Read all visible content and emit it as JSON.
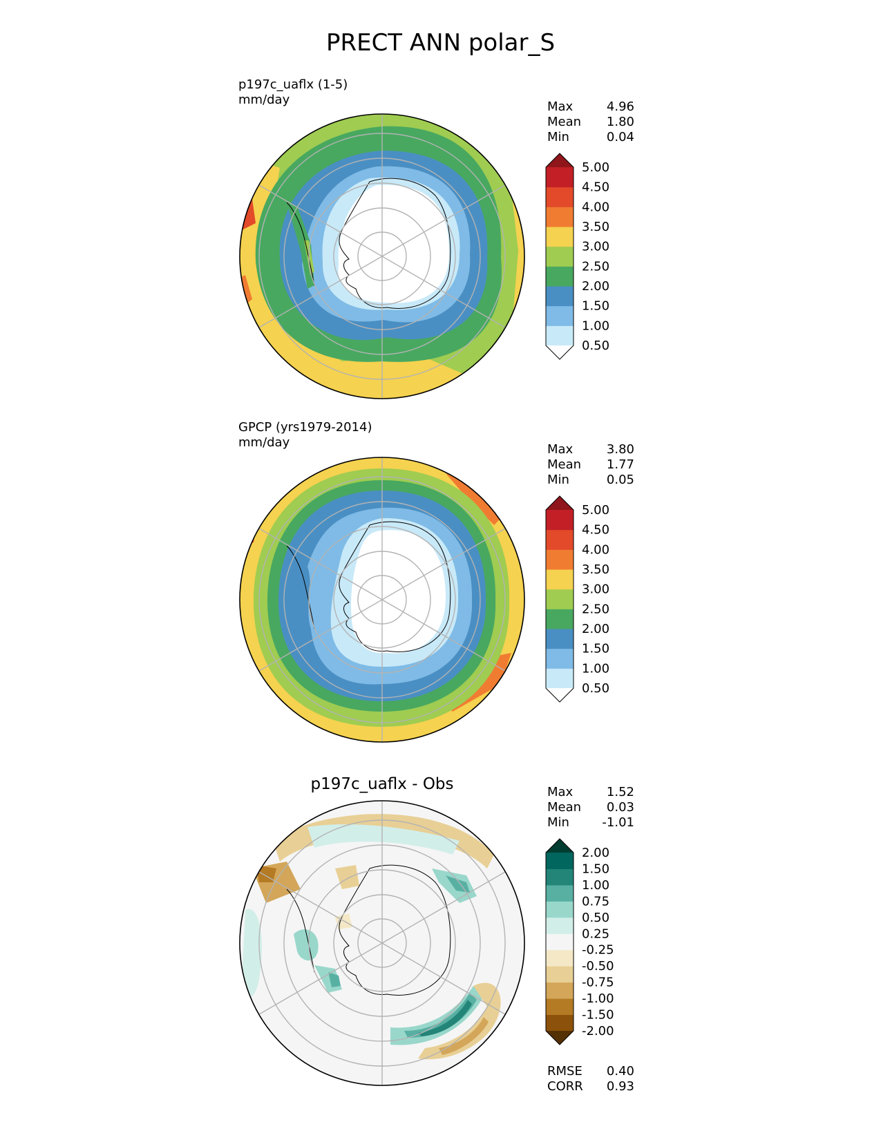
{
  "title": "PRECT ANN polar_S",
  "panels": [
    {
      "id": "test",
      "title_lines": [
        "p197c_uaflx (1-5)",
        "mm/day"
      ],
      "stats": [
        {
          "label": "Max",
          "value": "4.96"
        },
        {
          "label": "Mean",
          "value": "1.80"
        },
        {
          "label": "Min",
          "value": "0.04"
        }
      ],
      "colorbar": {
        "ticks": [
          "0.50",
          "1.00",
          "1.50",
          "2.00",
          "2.50",
          "3.00",
          "3.50",
          "4.00",
          "4.50",
          "5.00"
        ],
        "colors": [
          "#ffffff",
          "#c8e9f8",
          "#7fbbe6",
          "#4a8fc3",
          "#48a860",
          "#9fcc51",
          "#f5d24f",
          "#f07c32",
          "#e34a2a",
          "#c21f26",
          "#8f161b"
        ]
      }
    },
    {
      "id": "ref",
      "title_lines": [
        "GPCP (yrs1979-2014)",
        "mm/day"
      ],
      "stats": [
        {
          "label": "Max",
          "value": "3.80"
        },
        {
          "label": "Mean",
          "value": "1.77"
        },
        {
          "label": "Min",
          "value": "0.05"
        }
      ],
      "colorbar": {
        "ticks": [
          "0.50",
          "1.00",
          "1.50",
          "2.00",
          "2.50",
          "3.00",
          "3.50",
          "4.00",
          "4.50",
          "5.00"
        ],
        "colors": [
          "#ffffff",
          "#c8e9f8",
          "#7fbbe6",
          "#4a8fc3",
          "#48a860",
          "#9fcc51",
          "#f5d24f",
          "#f07c32",
          "#e34a2a",
          "#c21f26",
          "#8f161b"
        ]
      }
    },
    {
      "id": "diff",
      "title": "p197c_uaflx - Obs",
      "stats": [
        {
          "label": "Max",
          "value": "1.52"
        },
        {
          "label": "Mean",
          "value": "0.03"
        },
        {
          "label": "Min",
          "value": "-1.01"
        }
      ],
      "extra_stats": [
        {
          "label": "RMSE",
          "value": "0.40"
        },
        {
          "label": "CORR",
          "value": "0.93"
        }
      ],
      "colorbar": {
        "ticks": [
          "-2.00",
          "-1.50",
          "-1.00",
          "-0.75",
          "-0.50",
          "-0.25",
          "0.25",
          "0.50",
          "0.75",
          "1.00",
          "1.50",
          "2.00"
        ],
        "colors": [
          "#543005",
          "#8c510a",
          "#b47a24",
          "#d3a659",
          "#e8cf95",
          "#f4e8c6",
          "#f5f5f5",
          "#d2eee9",
          "#99d7cb",
          "#58b0a3",
          "#238478",
          "#01665e",
          "#003c30"
        ]
      }
    }
  ]
}
